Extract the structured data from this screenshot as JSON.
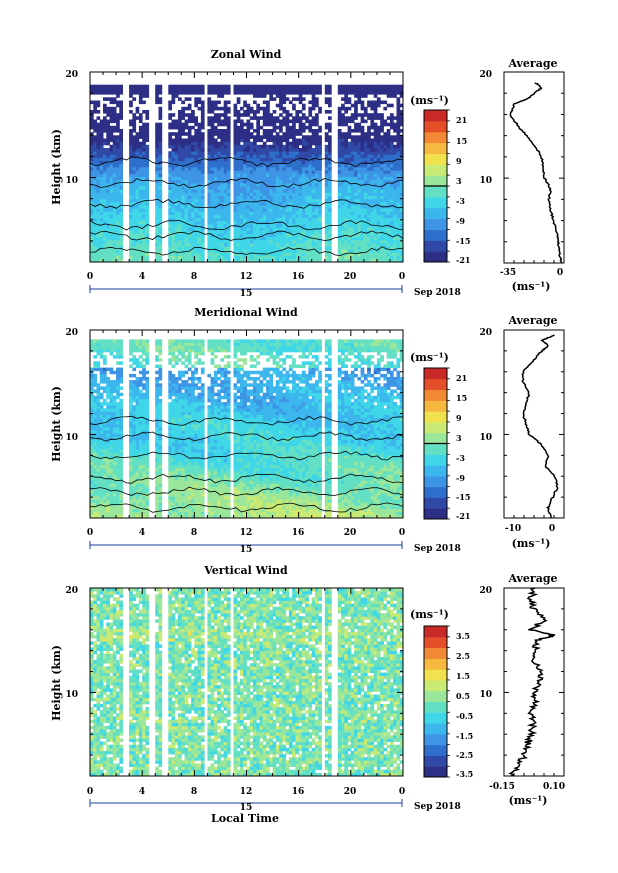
{
  "figure": {
    "colors": [
      "#2d2f86",
      "#3049a6",
      "#2f6fcc",
      "#3e95e6",
      "#3cb7ee",
      "#3fd6e8",
      "#63e0c4",
      "#9ae69a",
      "#c9ea74",
      "#efe24e",
      "#f7b840",
      "#f28a35",
      "#e44f2a",
      "#c92a28"
    ],
    "gap_color": "#ffffff",
    "colorbar_unit_label": "(ms⁻¹)",
    "profile_title": "Average",
    "profile_unit_label": "(ms⁻¹)",
    "shared_xlabel": "Local Time"
  },
  "chart_data": [
    {
      "type": "heatmap",
      "title": "Zonal Wind",
      "ylabel": "Height (km)",
      "ylim": [
        2,
        20
      ],
      "yticks": [
        "20",
        "10"
      ],
      "xlim": [
        0,
        24
      ],
      "xtick_labels": [
        "0",
        "4",
        "8",
        "12",
        "16",
        "20",
        "0"
      ],
      "date_labels": [
        "15",
        "Sep 2018"
      ],
      "colorbar_ticks": [
        "21",
        "15",
        "9",
        "3",
        "-3",
        "-9",
        "-15",
        "-21"
      ],
      "colorbar_range": [
        -24,
        24
      ],
      "contour_levels": [
        0
      ],
      "profile": {
        "xlim": [
          -38,
          2
        ],
        "xtick_labels": [
          "-35",
          "0"
        ],
        "height": [
          2.0,
          3.0,
          4.0,
          5.0,
          6.0,
          7.0,
          8.0,
          9.0,
          10.0,
          11.0,
          12.0,
          13.0,
          14.0,
          15.0,
          16.0,
          17.0,
          17.5,
          18.0,
          18.5,
          19.0
        ],
        "value": [
          0.0,
          -1.0,
          -2.0,
          -3.0,
          -5.0,
          -7.0,
          -8.0,
          -7.0,
          -11.0,
          -12.0,
          -13.0,
          -17.0,
          -23.0,
          -29.0,
          -34.0,
          -31.0,
          -22.0,
          -18.0,
          -13.0,
          -17.0
        ]
      }
    },
    {
      "type": "heatmap",
      "title": "Meridional Wind",
      "ylabel": "Height (km)",
      "ylim": [
        2,
        20
      ],
      "yticks": [
        "20",
        "10"
      ],
      "xlim": [
        0,
        24
      ],
      "xtick_labels": [
        "0",
        "4",
        "8",
        "12",
        "16",
        "20",
        "0"
      ],
      "date_labels": [
        "15",
        "Sep 2018"
      ],
      "colorbar_ticks": [
        "21",
        "15",
        "9",
        "3",
        "-3",
        "-9",
        "-15",
        "-21"
      ],
      "colorbar_range": [
        -24,
        24
      ],
      "contour_levels": [
        0
      ],
      "profile": {
        "xlim": [
          -15,
          4
        ],
        "xtick_labels": [
          "-10",
          "0"
        ],
        "height": [
          2.0,
          3.0,
          4.0,
          5.0,
          6.0,
          7.0,
          8.0,
          9.0,
          10.0,
          11.0,
          12.0,
          13.0,
          14.0,
          15.0,
          16.0,
          17.0,
          18.0,
          18.5,
          19.0,
          19.5
        ],
        "value": [
          0.0,
          -1.0,
          0.5,
          2.0,
          1.0,
          -2.0,
          -1.0,
          -3.0,
          -7.0,
          -8.0,
          -9.0,
          -8.0,
          -7.0,
          -9.0,
          -9.0,
          -6.0,
          -3.0,
          -1.0,
          -3.0,
          1.0
        ]
      }
    },
    {
      "type": "heatmap",
      "title": "Vertical Wind",
      "ylabel": "Height (km)",
      "ylim": [
        2,
        20
      ],
      "yticks": [
        "20",
        "10"
      ],
      "xlim": [
        0,
        24
      ],
      "xtick_labels": [
        "0",
        "4",
        "8",
        "12",
        "16",
        "20",
        "0"
      ],
      "date_labels": [
        "15",
        "Sep 2018"
      ],
      "colorbar_ticks": [
        "3.5",
        "2.5",
        "1.5",
        "0.5",
        "-0.5",
        "-1.5",
        "-2.5",
        "-3.5"
      ],
      "colorbar_range": [
        -4,
        4
      ],
      "contour_levels": [],
      "profile": {
        "xlim": [
          -0.17,
          0.14
        ],
        "xtick_labels": [
          "-0.15",
          "0.10"
        ],
        "height": [
          2.0,
          3.0,
          4.0,
          5.0,
          6.0,
          7.0,
          8.0,
          9.0,
          10.0,
          11.0,
          12.0,
          13.0,
          14.0,
          15.0,
          15.5,
          16.0,
          17.0,
          18.0,
          19.0,
          20.0
        ],
        "value": [
          -0.13,
          -0.1,
          -0.06,
          -0.05,
          -0.03,
          -0.02,
          -0.03,
          -0.01,
          -0.02,
          0.01,
          0.02,
          -0.02,
          -0.01,
          0.0,
          0.09,
          -0.04,
          0.05,
          -0.02,
          -0.03,
          -0.01
        ]
      }
    }
  ]
}
